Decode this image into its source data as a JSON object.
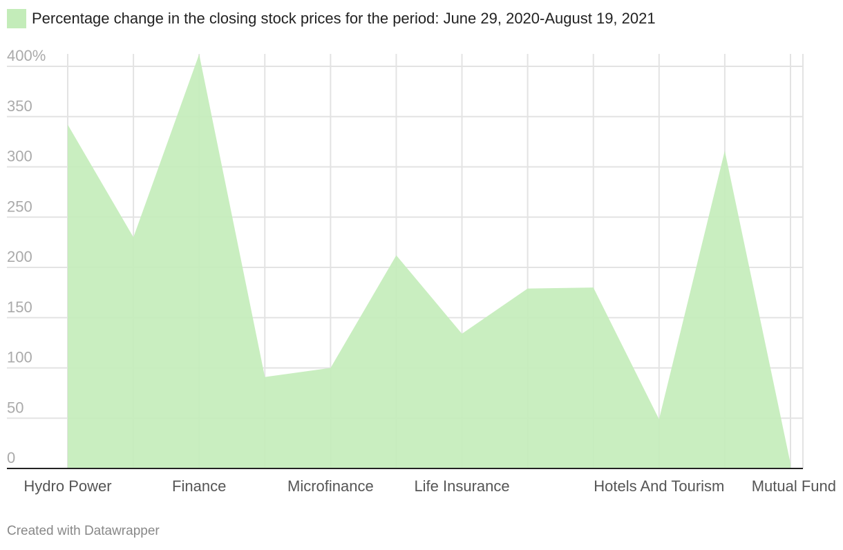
{
  "chart_data": {
    "type": "area",
    "legend": "Percentage change in the closing stock prices for the period: June 29, 2020-August 19, 2021",
    "categories": [
      "Hydro Power",
      "",
      "Finance",
      "",
      "Microfinance",
      "",
      "Life Insurance",
      "",
      "",
      "Hotels And Tourism",
      "",
      "Mutual Fund"
    ],
    "values": [
      342,
      230,
      412,
      91,
      100,
      212,
      134,
      179,
      180,
      49,
      316,
      5
    ],
    "y_ticks": [
      "400%",
      "350",
      "300",
      "250",
      "200",
      "150",
      "100",
      "50",
      "0"
    ],
    "ylim": [
      0,
      400
    ],
    "grid": true,
    "color": "#c3ecb9"
  },
  "footer": "Created with Datawrapper"
}
